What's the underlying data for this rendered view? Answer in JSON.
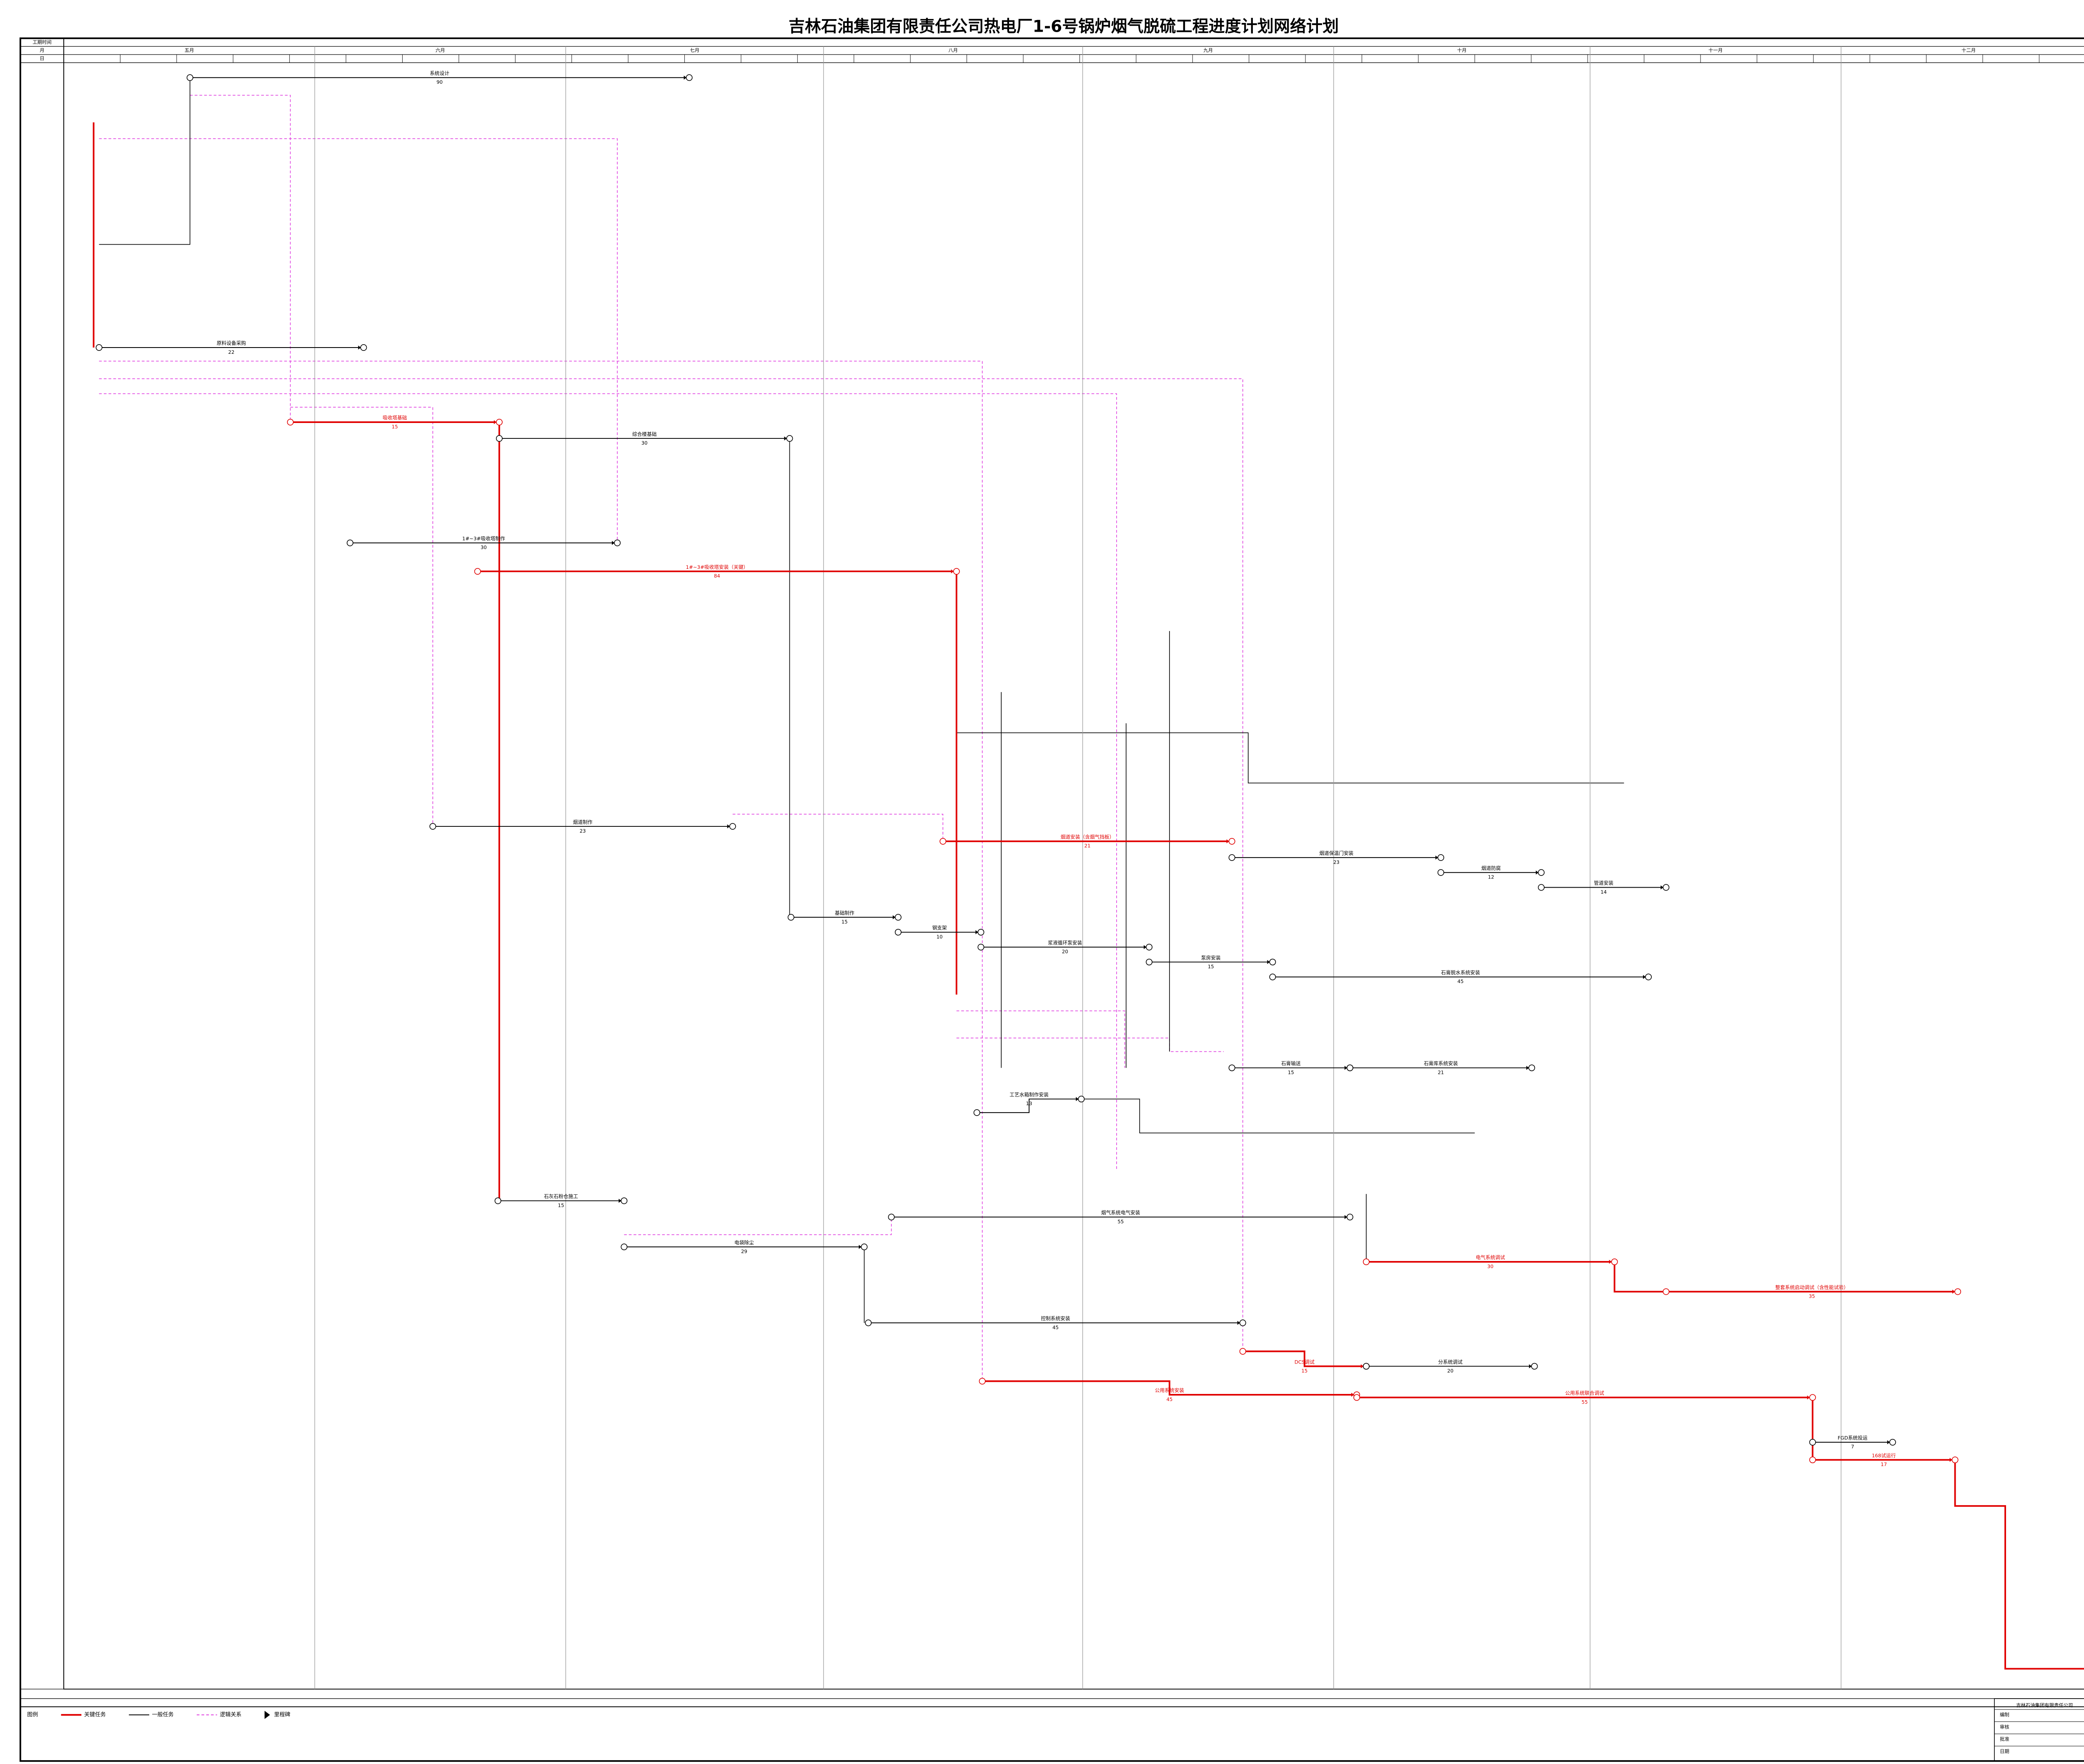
{
  "header": {
    "title": "吉林石油集团有限责任公司热电厂1-6号锅炉烟气脱硫工程进度计划网络计划",
    "row_label_period": "工期时间",
    "row_label_month": "月",
    "row_label_day": "日"
  },
  "months": [
    "五月",
    "六月",
    "七月",
    "八月",
    "九月",
    "十月",
    "十一月",
    "十二月"
  ],
  "tasks": [
    {
      "name": "系统设计",
      "duration": 90
    },
    {
      "name": "原料设备采购",
      "duration": 22
    },
    {
      "name": "吸收塔基础",
      "duration": 15
    },
    {
      "name": "综合楼基础",
      "duration": 30
    },
    {
      "name": "1#~3#吸收塔制作",
      "duration": 30
    },
    {
      "name": "1#~3#吸收塔安装（关键）",
      "duration": 84
    },
    {
      "name": "烟道制作",
      "duration": 23
    },
    {
      "name": "烟道安装（含烟气挡板）",
      "duration": 21
    },
    {
      "name": "烟道保温门安装",
      "duration": 23
    },
    {
      "name": "烟道防腐",
      "duration": 12
    },
    {
      "name": "管道安装",
      "duration": 14
    },
    {
      "name": "基础制作",
      "duration": 15
    },
    {
      "name": "钢支架",
      "duration": 10
    },
    {
      "name": "浆液循环泵安装",
      "duration": 20
    },
    {
      "name": "泵房安装",
      "duration": 15
    },
    {
      "name": "石膏脱水系统安装",
      "duration": 45
    },
    {
      "name": "石膏输送",
      "duration": 15
    },
    {
      "name": "石膏库系统安装",
      "duration": 21
    },
    {
      "name": "工艺水箱制作安装",
      "duration": 13
    },
    {
      "name": "石灰石粉仓施工",
      "duration": 15
    },
    {
      "name": "电袋除尘",
      "duration": 29
    },
    {
      "name": "烟气系统电气安装",
      "duration": 55
    },
    {
      "name": "电气系统调试",
      "duration": 30
    },
    {
      "name": "整套系统启动调试（含性能试验）",
      "duration": 35
    },
    {
      "name": "控制系统安装",
      "duration": 45
    },
    {
      "name": "DCS调试",
      "duration": 15
    },
    {
      "name": "分系统调试",
      "duration": 20
    },
    {
      "name": "公用系统安装",
      "duration": 45
    },
    {
      "name": "公用系统联合调试",
      "duration": 55
    },
    {
      "name": "168试运行",
      "duration": 17
    },
    {
      "name": "FGD系统投运",
      "duration": 7
    }
  ],
  "legend": {
    "label": "图例",
    "items": [
      "关键任务",
      "一般任务",
      "逻辑关系",
      "里程碑"
    ]
  },
  "title_block": {
    "company": "吉林石油集团有限责任公司",
    "rows": [
      "编制",
      "审核",
      "批准",
      "日期"
    ]
  }
}
